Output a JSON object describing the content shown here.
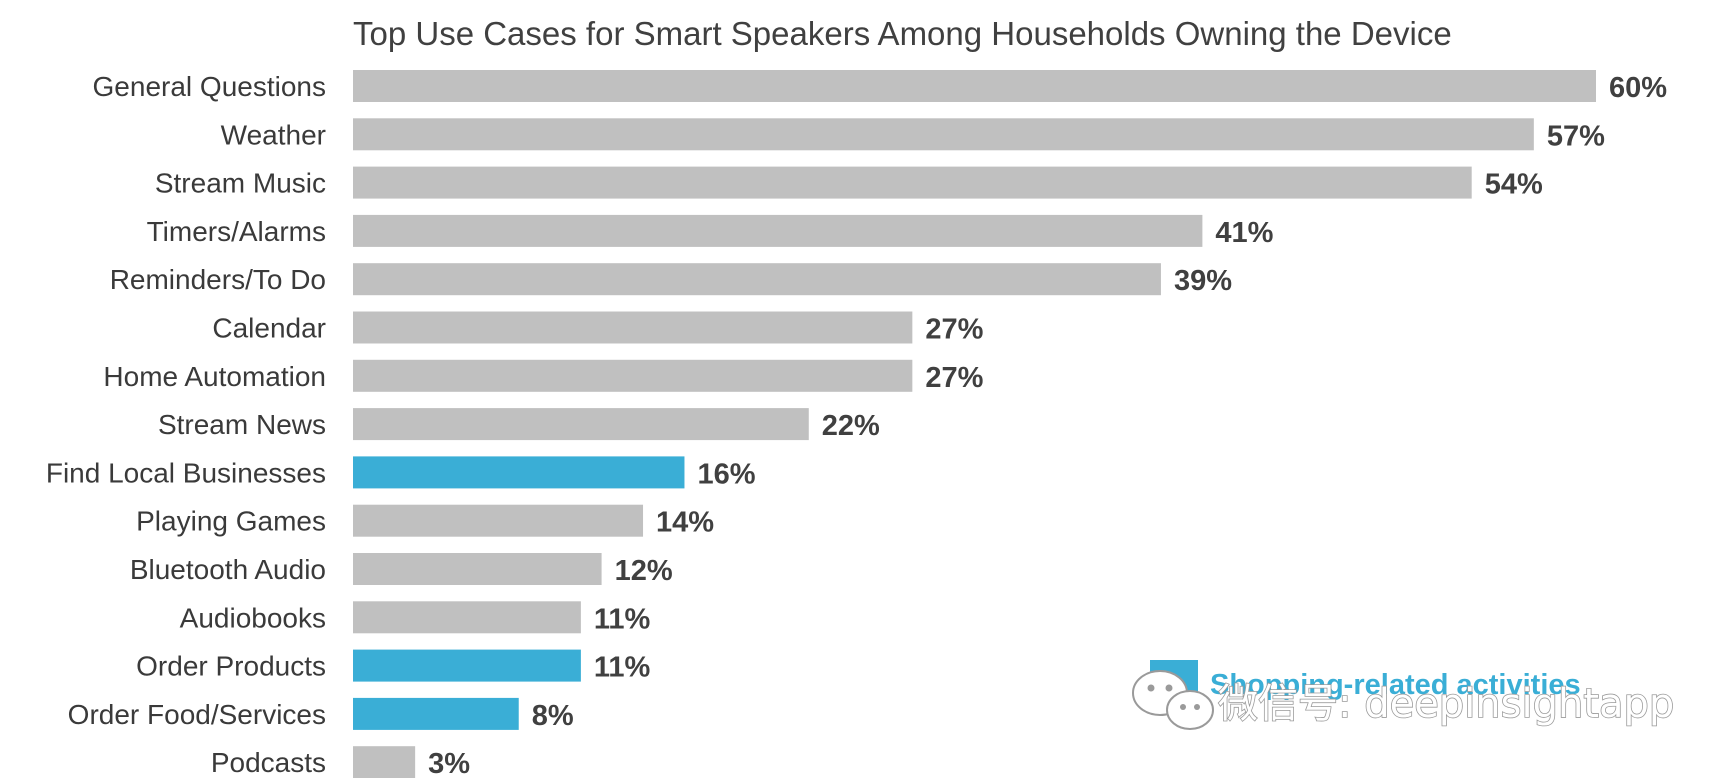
{
  "chart_data": {
    "type": "bar",
    "orientation": "horizontal",
    "title": "Top Use Cases for Smart Speakers Among Households Owning the Device",
    "categories": [
      "General Questions",
      "Weather",
      "Stream Music",
      "Timers/Alarms",
      "Reminders/To Do",
      "Calendar",
      "Home Automation",
      "Stream News",
      "Find Local Businesses",
      "Playing Games",
      "Bluetooth Audio",
      "Audiobooks",
      "Order Products",
      "Order Food/Services",
      "Podcasts"
    ],
    "values": [
      60,
      57,
      54,
      41,
      39,
      27,
      27,
      22,
      16,
      14,
      12,
      11,
      11,
      8,
      3
    ],
    "value_labels": [
      "60%",
      "57%",
      "54%",
      "41%",
      "39%",
      "27%",
      "27%",
      "22%",
      "16%",
      "14%",
      "12%",
      "11%",
      "11%",
      "8%",
      "3%"
    ],
    "highlighted": [
      false,
      false,
      false,
      false,
      false,
      false,
      false,
      false,
      true,
      false,
      false,
      false,
      true,
      true,
      false
    ],
    "xlim": [
      0,
      60
    ],
    "grid": false,
    "colors": {
      "default": "#c0c0c0",
      "highlight": "#3aaed6"
    },
    "legend": {
      "position": "bottom-right",
      "label": "Shopping-related activities",
      "color": "#3aaed6"
    }
  },
  "watermark": {
    "text": "微信号: deepinsightapp",
    "icon": "wechat-icon"
  }
}
